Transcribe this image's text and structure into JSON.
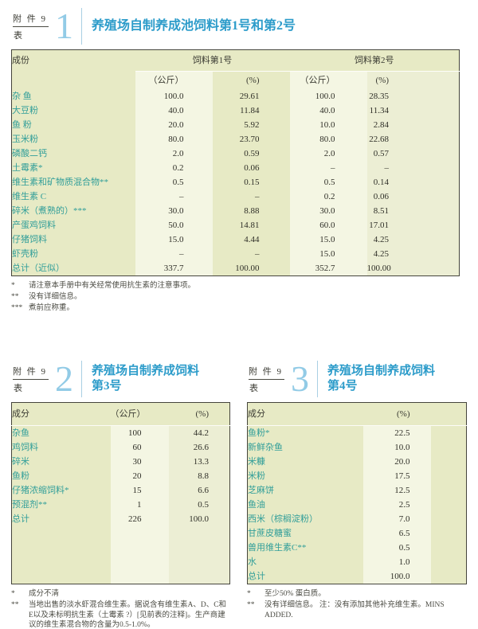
{
  "palette": {
    "title_blue": "#2d9cca",
    "numeral_blue": "#92cbe6",
    "ingredient_teal": "#319e99",
    "table_green": "#e7eac5",
    "table_cream": "#f4f6e3",
    "table_mid": "#eceed4",
    "border_dark": "#45453c"
  },
  "section1": {
    "annex_label": "附 件 9",
    "table_label": "表",
    "number": "1",
    "title": "养殖场自制养成池饲料第1号和第2号",
    "table": {
      "col_ingredient": "成份",
      "feed1_header": "饲料第1号",
      "feed2_header": "饲料第2号",
      "unit_kg": "（公斤）",
      "unit_pct": "(%)",
      "rows": [
        {
          "name": "杂 鱼",
          "kg1": "100.0",
          "pct1": "29.61",
          "kg2": "100.0",
          "pct2": "28.35"
        },
        {
          "name": "大豆粉",
          "kg1": "40.0",
          "pct1": "11.84",
          "kg2": "40.0",
          "pct2": "11.34"
        },
        {
          "name": "鱼 粉",
          "kg1": "20.0",
          "pct1": "5.92",
          "kg2": "10.0",
          "pct2": "2.84"
        },
        {
          "name": "玉米粉",
          "kg1": "80.0",
          "pct1": "23.70",
          "kg2": "80.0",
          "pct2": "22.68"
        },
        {
          "name": "磷酸二钙",
          "kg1": "2.0",
          "pct1": "0.59",
          "kg2": "2.0",
          "pct2": "0.57"
        },
        {
          "name": "土霉素*",
          "kg1": "0.2",
          "pct1": "0.06",
          "kg2": "–",
          "pct2": "–"
        },
        {
          "name": "维生素和矿物质混合物**",
          "kg1": "0.5",
          "pct1": "0.15",
          "kg2": "0.5",
          "pct2": "0.14"
        },
        {
          "name": "维生素 C",
          "kg1": "–",
          "pct1": "–",
          "kg2": "0.2",
          "pct2": "0.06"
        },
        {
          "name": "碎米（煮熟的）***",
          "kg1": "30.0",
          "pct1": "8.88",
          "kg2": "30.0",
          "pct2": "8.51"
        },
        {
          "name": "产蛋鸡饲料",
          "kg1": "50.0",
          "pct1": "14.81",
          "kg2": "60.0",
          "pct2": "17.01"
        },
        {
          "name": "仔猪饲料",
          "kg1": "15.0",
          "pct1": "4.44",
          "kg2": "15.0",
          "pct2": "4.25"
        },
        {
          "name": "虾壳粉",
          "kg1": "–",
          "pct1": "–",
          "kg2": "15.0",
          "pct2": "4.25"
        },
        {
          "name": "总计（近似）",
          "kg1": "337.7",
          "pct1": "100.00",
          "kg2": "352.7",
          "pct2": "100.00"
        }
      ]
    },
    "footnotes": [
      {
        "marker": "*",
        "text": "请注意本手册中有关经常使用抗生素的注意事项。"
      },
      {
        "marker": "**",
        "text": "没有详细信息。"
      },
      {
        "marker": "***",
        "text": "煮前应称重。"
      }
    ]
  },
  "section2": {
    "annex_label": "附 件 9",
    "table_label": "表",
    "number": "2",
    "title": "养殖场自制养成饲料\n第3号",
    "table": {
      "col_ingredient": "成分",
      "unit_kg": "（公斤）",
      "unit_pct": "(%)",
      "rows": [
        {
          "name": "杂鱼",
          "kg": "100",
          "pct": "44.2"
        },
        {
          "name": "鸡饲料",
          "kg": "60",
          "pct": "26.6"
        },
        {
          "name": "碎米",
          "kg": "30",
          "pct": "13.3"
        },
        {
          "name": "鱼粉",
          "kg": "20",
          "pct": "8.8"
        },
        {
          "name": "仔猪浓缩饲料*",
          "kg": "15",
          "pct": "6.6"
        },
        {
          "name": "预混剂**",
          "kg": "1",
          "pct": "0.5"
        },
        {
          "name": "总计",
          "kg": "226",
          "pct": "100.0"
        }
      ]
    },
    "footnotes": [
      {
        "marker": "*",
        "text": "成分不清"
      },
      {
        "marker": "**",
        "text": "当地出售的淡水虾混合维生素。据说含有维生素A、D、C和E以及未标明抗生素（土霉素 ?）[见前表的注释]。生产商建议的维生素混合物的含量为0.5-1.0%。"
      }
    ]
  },
  "section3": {
    "annex_label": "附 件 9",
    "table_label": "表",
    "number": "3",
    "title": "养殖场自制养成饲料\n第4号",
    "table": {
      "col_ingredient": "成分",
      "unit_pct": "(%)",
      "rows": [
        {
          "name": "鱼粉*",
          "pct": "22.5"
        },
        {
          "name": "新鲜杂鱼",
          "pct": "10.0"
        },
        {
          "name": "米糠",
          "pct": "20.0"
        },
        {
          "name": "米粉",
          "pct": "17.5"
        },
        {
          "name": "芝麻饼",
          "pct": "12.5"
        },
        {
          "name": "鱼油",
          "pct": "2.5"
        },
        {
          "name": "西米（棕榈淀粉）",
          "pct": "7.0"
        },
        {
          "name": "甘蔗皮糖蜜",
          "pct": "6.5"
        },
        {
          "name": "兽用维生素C**",
          "pct": "0.5"
        },
        {
          "name": "水",
          "pct": "1.0"
        },
        {
          "name": "总计",
          "pct": "100.0"
        }
      ]
    },
    "footnotes": [
      {
        "marker": "*",
        "text": "至少50% 蛋白质。"
      },
      {
        "marker": "**",
        "text": "没有详细信息。 注：没有添加其他补充维生素。MINS ADDED."
      }
    ]
  }
}
